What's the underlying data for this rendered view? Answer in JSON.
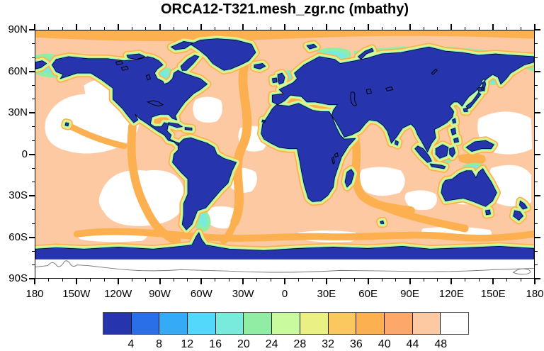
{
  "title": "ORCA12-T321.mesh_zgr.nc (mbathy)",
  "chart_data": {
    "type": "heatmap",
    "subtype": "cell-filled world map (equirectangular lat/lon plot)",
    "title": "ORCA12-T321.mesh_zgr.nc (mbathy)",
    "x_axis": {
      "tick_labels": [
        "180",
        "150W",
        "120W",
        "90W",
        "60W",
        "30W",
        "0",
        "30E",
        "60E",
        "90E",
        "120E",
        "150E",
        "180"
      ],
      "range_deg": [
        -180,
        180
      ],
      "major_interval_deg": 30,
      "minor_interval_deg": 10
    },
    "y_axis": {
      "tick_labels": [
        "90N",
        "60N",
        "30N",
        "0",
        "30S",
        "60S",
        "90S"
      ],
      "range_deg": [
        90,
        -90
      ],
      "major_interval_deg": 30,
      "minor_interval_deg": 10
    },
    "colorbar": {
      "orientation": "horizontal",
      "position": "bottom",
      "tick_labels": [
        "4",
        "8",
        "12",
        "16",
        "20",
        "24",
        "28",
        "32",
        "36",
        "40",
        "44",
        "48"
      ],
      "cell_colors": [
        "#2634ad",
        "#2b6fe8",
        "#35aaf7",
        "#53d7fa",
        "#79ebdc",
        "#91eda4",
        "#c9fa9e",
        "#eaf083",
        "#fbc75f",
        "#fcb04f",
        "#fda76a",
        "#fdc9a3",
        "#ffffff"
      ]
    },
    "map_colors": {
      "land": "#2634ad",
      "mid_depth_ocean": "#fdc9a3",
      "deep_ocean": "#ffffff",
      "ridge_orange": "#fcb04f",
      "shelf_cyan": "#79ebdc",
      "shelf_green": "#91eda4",
      "shelf_yellow": "#eaf083",
      "coastline": "#000000",
      "antarctic_outline_gray": "#777777"
    }
  }
}
